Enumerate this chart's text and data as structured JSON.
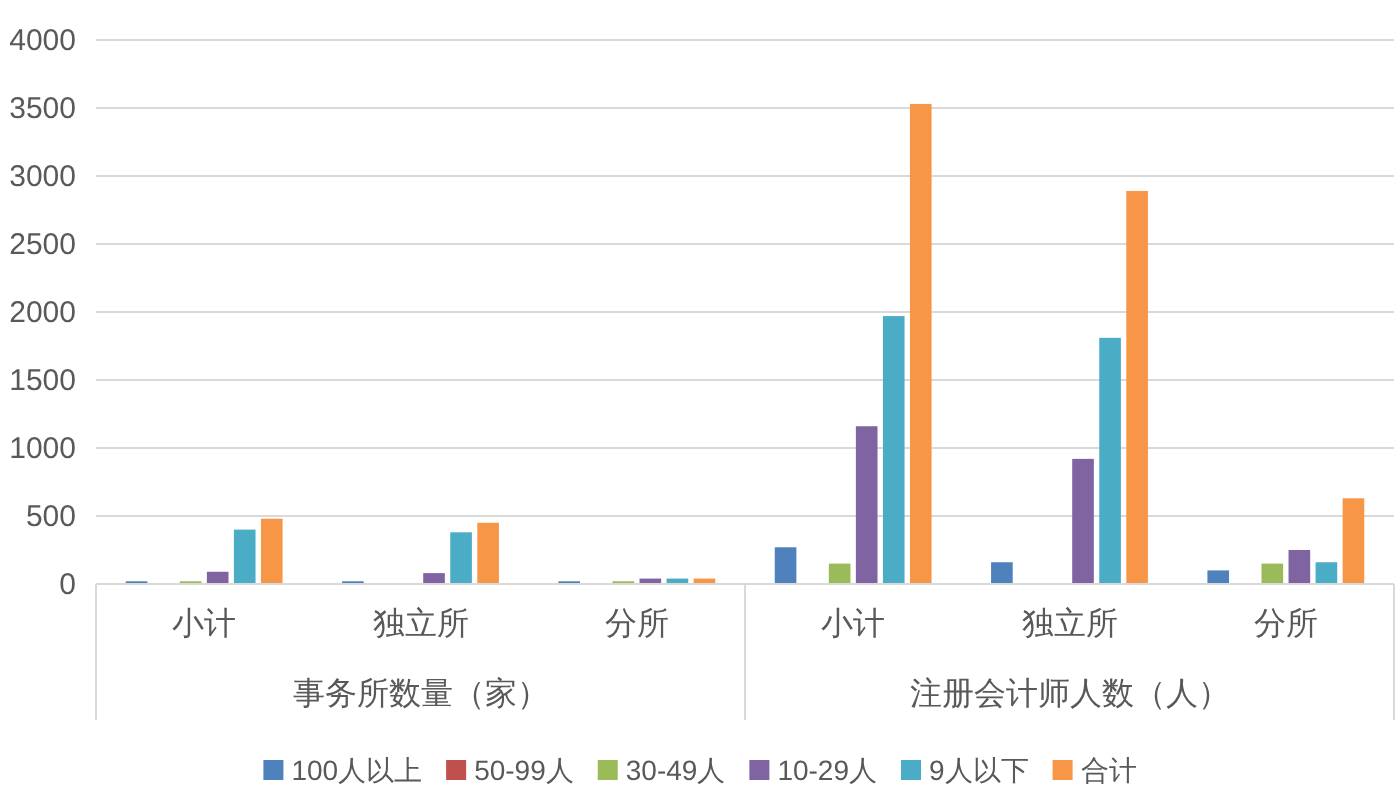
{
  "chart_data": {
    "type": "bar",
    "categories": [
      "小计",
      "独立所",
      "分所",
      "小计",
      "独立所",
      "分所"
    ],
    "series": [
      {
        "name": "100人以上",
        "color": "#4f81bd",
        "values": [
          20,
          20,
          20,
          270,
          160,
          100
        ]
      },
      {
        "name": "50-99人",
        "color": "#c0504d",
        "values": [
          null,
          null,
          null,
          null,
          null,
          null
        ]
      },
      {
        "name": "30-49人",
        "color": "#9bbb59",
        "values": [
          20,
          null,
          20,
          150,
          null,
          150
        ]
      },
      {
        "name": "10-29人",
        "color": "#8064a2",
        "values": [
          90,
          80,
          40,
          1160,
          920,
          250
        ]
      },
      {
        "name": "9人以下",
        "color": "#4bacc6",
        "values": [
          400,
          380,
          40,
          1970,
          1810,
          160
        ]
      },
      {
        "name": "合计",
        "color": "#f79646",
        "values": [
          480,
          450,
          40,
          3530,
          2890,
          630
        ]
      }
    ],
    "ylim": [
      0,
      4000
    ],
    "yticks": [
      0,
      500,
      1000,
      1500,
      2000,
      2500,
      3000,
      3500,
      4000
    ],
    "grid": "y",
    "legend": "bottom",
    "annotations": [
      "事务所数量（家）",
      "注册会计师人数（人）"
    ]
  }
}
